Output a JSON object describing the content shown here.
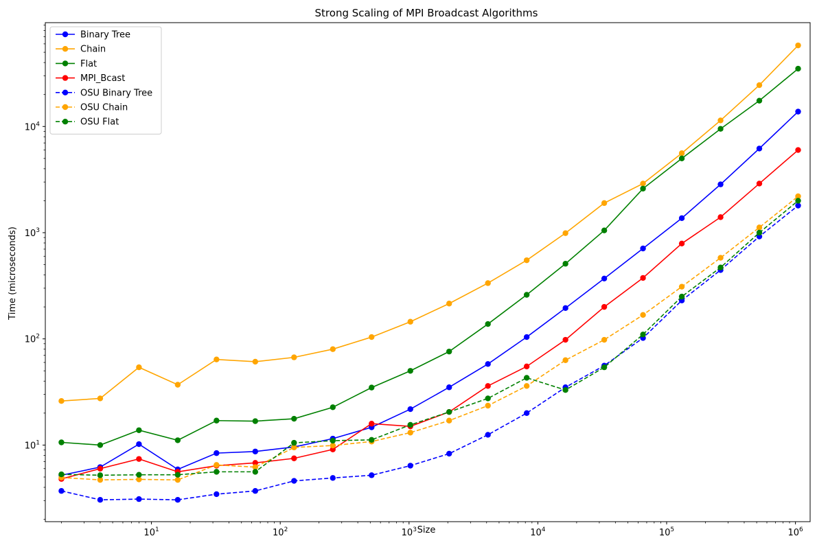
{
  "chart_data": {
    "type": "line",
    "title": "Strong Scaling of MPI Broadcast Algorithms",
    "xlabel": "Size",
    "ylabel": "Time (microseconds)",
    "xscale": "log",
    "yscale": "log",
    "xlim": [
      1.5,
      1300000
    ],
    "ylim": [
      1.9,
      95000
    ],
    "grid": false,
    "legend_position": "top-left",
    "x_ticks": [
      {
        "value": 10,
        "base": "10",
        "exp": "1"
      },
      {
        "value": 100,
        "base": "10",
        "exp": "2"
      },
      {
        "value": 1000,
        "base": "10",
        "exp": "3"
      },
      {
        "value": 10000,
        "base": "10",
        "exp": "4"
      },
      {
        "value": 100000,
        "base": "10",
        "exp": "5"
      },
      {
        "value": 1000000,
        "base": "10",
        "exp": "6"
      }
    ],
    "y_ticks": [
      {
        "value": 10,
        "base": "10",
        "exp": "1"
      },
      {
        "value": 100,
        "base": "10",
        "exp": "2"
      },
      {
        "value": 1000,
        "base": "10",
        "exp": "3"
      },
      {
        "value": 10000,
        "base": "10",
        "exp": "4"
      }
    ],
    "x": [
      2,
      4,
      8,
      16,
      32,
      64,
      128,
      256,
      512,
      1024,
      2048,
      4096,
      8192,
      16384,
      32768,
      65536,
      131072,
      262144,
      524288,
      1048576
    ],
    "series": [
      {
        "name": "Binary Tree",
        "color": "#0000ff",
        "dash": "solid",
        "values": [
          5.2,
          6.2,
          10.2,
          5.9,
          8.4,
          8.7,
          9.6,
          11.5,
          14.7,
          21.8,
          35,
          58,
          104,
          195,
          370,
          710,
          1370,
          2850,
          6200,
          13800
        ]
      },
      {
        "name": "Chain",
        "color": "#ffa500",
        "dash": "solid",
        "values": [
          26,
          27.5,
          54,
          37,
          64,
          61,
          67,
          80,
          104,
          145,
          215,
          335,
          550,
          990,
          1900,
          2900,
          5600,
          11400,
          24500,
          58000
        ]
      },
      {
        "name": "Flat",
        "color": "#008000",
        "dash": "solid",
        "values": [
          10.6,
          10,
          13.8,
          11.1,
          17,
          16.8,
          17.7,
          22.7,
          34.8,
          50,
          76,
          138,
          260,
          510,
          1050,
          2600,
          5000,
          9500,
          17500,
          35000
        ]
      },
      {
        "name": "MPI_Bcast",
        "color": "#ff0000",
        "dash": "solid",
        "values": [
          4.8,
          6.0,
          7.4,
          5.6,
          6.4,
          6.8,
          7.5,
          9.1,
          15.9,
          15.0,
          20.5,
          36,
          55,
          98,
          200,
          375,
          790,
          1400,
          2900,
          6000
        ]
      },
      {
        "name": "OSU Binary Tree",
        "color": "#0000ff",
        "dash": "dashed",
        "values": [
          3.7,
          3.05,
          3.1,
          3.05,
          3.45,
          3.7,
          4.6,
          4.9,
          5.2,
          6.4,
          8.3,
          12.5,
          20,
          35,
          56,
          102,
          230,
          445,
          920,
          1800
        ]
      },
      {
        "name": "OSU Chain",
        "color": "#ffa500",
        "dash": "dashed",
        "values": [
          4.95,
          4.7,
          4.75,
          4.7,
          6.5,
          6.2,
          9.5,
          9.9,
          10.8,
          13.1,
          17,
          23.5,
          36,
          63,
          98,
          168,
          310,
          580,
          1120,
          2200
        ]
      },
      {
        "name": "OSU Flat",
        "color": "#008000",
        "dash": "dashed",
        "values": [
          5.3,
          5.2,
          5.25,
          5.25,
          5.6,
          5.6,
          10.5,
          11,
          11.2,
          15.5,
          20.5,
          27.5,
          43,
          33,
          54,
          110,
          250,
          470,
          1000,
          2000
        ]
      }
    ]
  }
}
